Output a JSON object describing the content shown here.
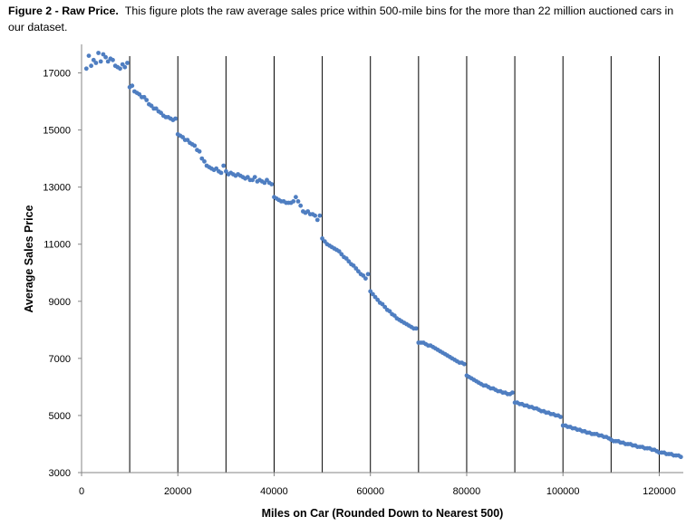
{
  "caption": {
    "label": "Figure 2 - Raw Price.",
    "text": "This figure plots the raw average sales price within 500-mile bins for the more than 22 million auctioned cars in our dataset."
  },
  "chart_data": {
    "type": "scatter",
    "title": "",
    "xlabel": "Miles on Car (Rounded Down to Nearest 500)",
    "ylabel": "Average Sales Price",
    "xlim": [
      0,
      125000
    ],
    "ylim": [
      3000,
      18000
    ],
    "x_ticks": [
      0,
      20000,
      40000,
      60000,
      80000,
      100000,
      120000
    ],
    "y_ticks": [
      3000,
      5000,
      7000,
      9000,
      11000,
      13000,
      15000,
      17000
    ],
    "vertical_lines": [
      10000,
      20000,
      30000,
      40000,
      50000,
      60000,
      70000,
      80000,
      90000,
      100000,
      110000,
      120000
    ],
    "marker_color": "#4f7ec1",
    "grid": false,
    "legend": "none",
    "points": [
      [
        1000,
        17150
      ],
      [
        1500,
        17600
      ],
      [
        2000,
        17250
      ],
      [
        2500,
        17450
      ],
      [
        3000,
        17350
      ],
      [
        3500,
        17700
      ],
      [
        4000,
        17400
      ],
      [
        4500,
        17650
      ],
      [
        5000,
        17550
      ],
      [
        5500,
        17400
      ],
      [
        6000,
        17500
      ],
      [
        6500,
        17450
      ],
      [
        7000,
        17250
      ],
      [
        7500,
        17200
      ],
      [
        8000,
        17150
      ],
      [
        8500,
        17300
      ],
      [
        9000,
        17200
      ],
      [
        9500,
        17350
      ],
      [
        10000,
        16500
      ],
      [
        10500,
        16550
      ],
      [
        11000,
        16350
      ],
      [
        11500,
        16300
      ],
      [
        12000,
        16250
      ],
      [
        12500,
        16150
      ],
      [
        13000,
        16150
      ],
      [
        13500,
        16050
      ],
      [
        14000,
        15900
      ],
      [
        14500,
        15850
      ],
      [
        15000,
        15750
      ],
      [
        15500,
        15750
      ],
      [
        16000,
        15650
      ],
      [
        16500,
        15600
      ],
      [
        17000,
        15500
      ],
      [
        17500,
        15450
      ],
      [
        18000,
        15450
      ],
      [
        18500,
        15400
      ],
      [
        19000,
        15350
      ],
      [
        19500,
        15400
      ],
      [
        20000,
        14850
      ],
      [
        20500,
        14800
      ],
      [
        21000,
        14750
      ],
      [
        21500,
        14650
      ],
      [
        22000,
        14650
      ],
      [
        22500,
        14550
      ],
      [
        23000,
        14500
      ],
      [
        23500,
        14450
      ],
      [
        24000,
        14300
      ],
      [
        24500,
        14250
      ],
      [
        25000,
        14000
      ],
      [
        25500,
        13900
      ],
      [
        26000,
        13750
      ],
      [
        26500,
        13700
      ],
      [
        27000,
        13650
      ],
      [
        27500,
        13600
      ],
      [
        28000,
        13650
      ],
      [
        28500,
        13550
      ],
      [
        29000,
        13500
      ],
      [
        29500,
        13750
      ],
      [
        30000,
        13550
      ],
      [
        30500,
        13450
      ],
      [
        31000,
        13500
      ],
      [
        31500,
        13450
      ],
      [
        32000,
        13400
      ],
      [
        32500,
        13450
      ],
      [
        33000,
        13400
      ],
      [
        33500,
        13350
      ],
      [
        34000,
        13300
      ],
      [
        34500,
        13350
      ],
      [
        35000,
        13250
      ],
      [
        35500,
        13250
      ],
      [
        36000,
        13350
      ],
      [
        36500,
        13200
      ],
      [
        37000,
        13250
      ],
      [
        37500,
        13200
      ],
      [
        38000,
        13150
      ],
      [
        38500,
        13250
      ],
      [
        39000,
        13150
      ],
      [
        39500,
        13100
      ],
      [
        40000,
        12650
      ],
      [
        40500,
        12600
      ],
      [
        41000,
        12550
      ],
      [
        41500,
        12500
      ],
      [
        42000,
        12500
      ],
      [
        42500,
        12450
      ],
      [
        43000,
        12450
      ],
      [
        43500,
        12450
      ],
      [
        44000,
        12500
      ],
      [
        44500,
        12650
      ],
      [
        45000,
        12500
      ],
      [
        45500,
        12350
      ],
      [
        46000,
        12150
      ],
      [
        46500,
        12100
      ],
      [
        47000,
        12150
      ],
      [
        47500,
        12050
      ],
      [
        48000,
        12050
      ],
      [
        48500,
        12000
      ],
      [
        49000,
        11850
      ],
      [
        49500,
        12000
      ],
      [
        50000,
        11200
      ],
      [
        50500,
        11100
      ],
      [
        51000,
        11000
      ],
      [
        51500,
        10950
      ],
      [
        52000,
        10900
      ],
      [
        52500,
        10850
      ],
      [
        53000,
        10800
      ],
      [
        53500,
        10750
      ],
      [
        54000,
        10650
      ],
      [
        54500,
        10550
      ],
      [
        55000,
        10500
      ],
      [
        55500,
        10400
      ],
      [
        56000,
        10300
      ],
      [
        56500,
        10250
      ],
      [
        57000,
        10150
      ],
      [
        57500,
        10050
      ],
      [
        58000,
        9950
      ],
      [
        58500,
        9900
      ],
      [
        59000,
        9800
      ],
      [
        59500,
        9950
      ],
      [
        60000,
        9350
      ],
      [
        60500,
        9250
      ],
      [
        61000,
        9150
      ],
      [
        61500,
        9050
      ],
      [
        62000,
        8950
      ],
      [
        62500,
        8900
      ],
      [
        63000,
        8800
      ],
      [
        63500,
        8700
      ],
      [
        64000,
        8650
      ],
      [
        64500,
        8550
      ],
      [
        65000,
        8500
      ],
      [
        65500,
        8400
      ],
      [
        66000,
        8350
      ],
      [
        66500,
        8300
      ],
      [
        67000,
        8250
      ],
      [
        67500,
        8200
      ],
      [
        68000,
        8150
      ],
      [
        68500,
        8100
      ],
      [
        69000,
        8050
      ],
      [
        69500,
        8050
      ],
      [
        70000,
        7550
      ],
      [
        70500,
        7550
      ],
      [
        71000,
        7550
      ],
      [
        71500,
        7500
      ],
      [
        72000,
        7450
      ],
      [
        72500,
        7450
      ],
      [
        73000,
        7400
      ],
      [
        73500,
        7350
      ],
      [
        74000,
        7300
      ],
      [
        74500,
        7250
      ],
      [
        75000,
        7200
      ],
      [
        75500,
        7150
      ],
      [
        76000,
        7100
      ],
      [
        76500,
        7050
      ],
      [
        77000,
        7000
      ],
      [
        77500,
        6950
      ],
      [
        78000,
        6900
      ],
      [
        78500,
        6850
      ],
      [
        79000,
        6850
      ],
      [
        79500,
        6800
      ],
      [
        80000,
        6400
      ],
      [
        80500,
        6350
      ],
      [
        81000,
        6300
      ],
      [
        81500,
        6250
      ],
      [
        82000,
        6200
      ],
      [
        82500,
        6150
      ],
      [
        83000,
        6100
      ],
      [
        83500,
        6050
      ],
      [
        84000,
        6050
      ],
      [
        84500,
        6000
      ],
      [
        85000,
        5950
      ],
      [
        85500,
        5950
      ],
      [
        86000,
        5900
      ],
      [
        86500,
        5850
      ],
      [
        87000,
        5850
      ],
      [
        87500,
        5800
      ],
      [
        88000,
        5800
      ],
      [
        88500,
        5750
      ],
      [
        89000,
        5750
      ],
      [
        89500,
        5800
      ],
      [
        90000,
        5450
      ],
      [
        90500,
        5450
      ],
      [
        91000,
        5400
      ],
      [
        91500,
        5400
      ],
      [
        92000,
        5350
      ],
      [
        92500,
        5350
      ],
      [
        93000,
        5300
      ],
      [
        93500,
        5300
      ],
      [
        94000,
        5250
      ],
      [
        94500,
        5250
      ],
      [
        95000,
        5200
      ],
      [
        95500,
        5150
      ],
      [
        96000,
        5150
      ],
      [
        96500,
        5100
      ],
      [
        97000,
        5100
      ],
      [
        97500,
        5050
      ],
      [
        98000,
        5050
      ],
      [
        98500,
        5000
      ],
      [
        99000,
        5000
      ],
      [
        99500,
        4950
      ],
      [
        100000,
        4650
      ],
      [
        100500,
        4650
      ],
      [
        101000,
        4600
      ],
      [
        101500,
        4600
      ],
      [
        102000,
        4550
      ],
      [
        102500,
        4550
      ],
      [
        103000,
        4500
      ],
      [
        103500,
        4500
      ],
      [
        104000,
        4450
      ],
      [
        104500,
        4450
      ],
      [
        105000,
        4400
      ],
      [
        105500,
        4400
      ],
      [
        106000,
        4350
      ],
      [
        106500,
        4350
      ],
      [
        107000,
        4350
      ],
      [
        107500,
        4300
      ],
      [
        108000,
        4300
      ],
      [
        108500,
        4250
      ],
      [
        109000,
        4250
      ],
      [
        109500,
        4200
      ],
      [
        110000,
        4150
      ],
      [
        110500,
        4100
      ],
      [
        111000,
        4100
      ],
      [
        111500,
        4100
      ],
      [
        112000,
        4050
      ],
      [
        112500,
        4050
      ],
      [
        113000,
        4000
      ],
      [
        113500,
        4000
      ],
      [
        114000,
        4000
      ],
      [
        114500,
        3950
      ],
      [
        115000,
        3950
      ],
      [
        115500,
        3900
      ],
      [
        116000,
        3900
      ],
      [
        116500,
        3900
      ],
      [
        117000,
        3850
      ],
      [
        117500,
        3850
      ],
      [
        118000,
        3850
      ],
      [
        118500,
        3800
      ],
      [
        119000,
        3800
      ],
      [
        119500,
        3750
      ],
      [
        120000,
        3700
      ],
      [
        120500,
        3700
      ],
      [
        121000,
        3700
      ],
      [
        121500,
        3650
      ],
      [
        122000,
        3650
      ],
      [
        122500,
        3650
      ],
      [
        123000,
        3600
      ],
      [
        123500,
        3600
      ],
      [
        124000,
        3600
      ],
      [
        124500,
        3550
      ]
    ]
  }
}
